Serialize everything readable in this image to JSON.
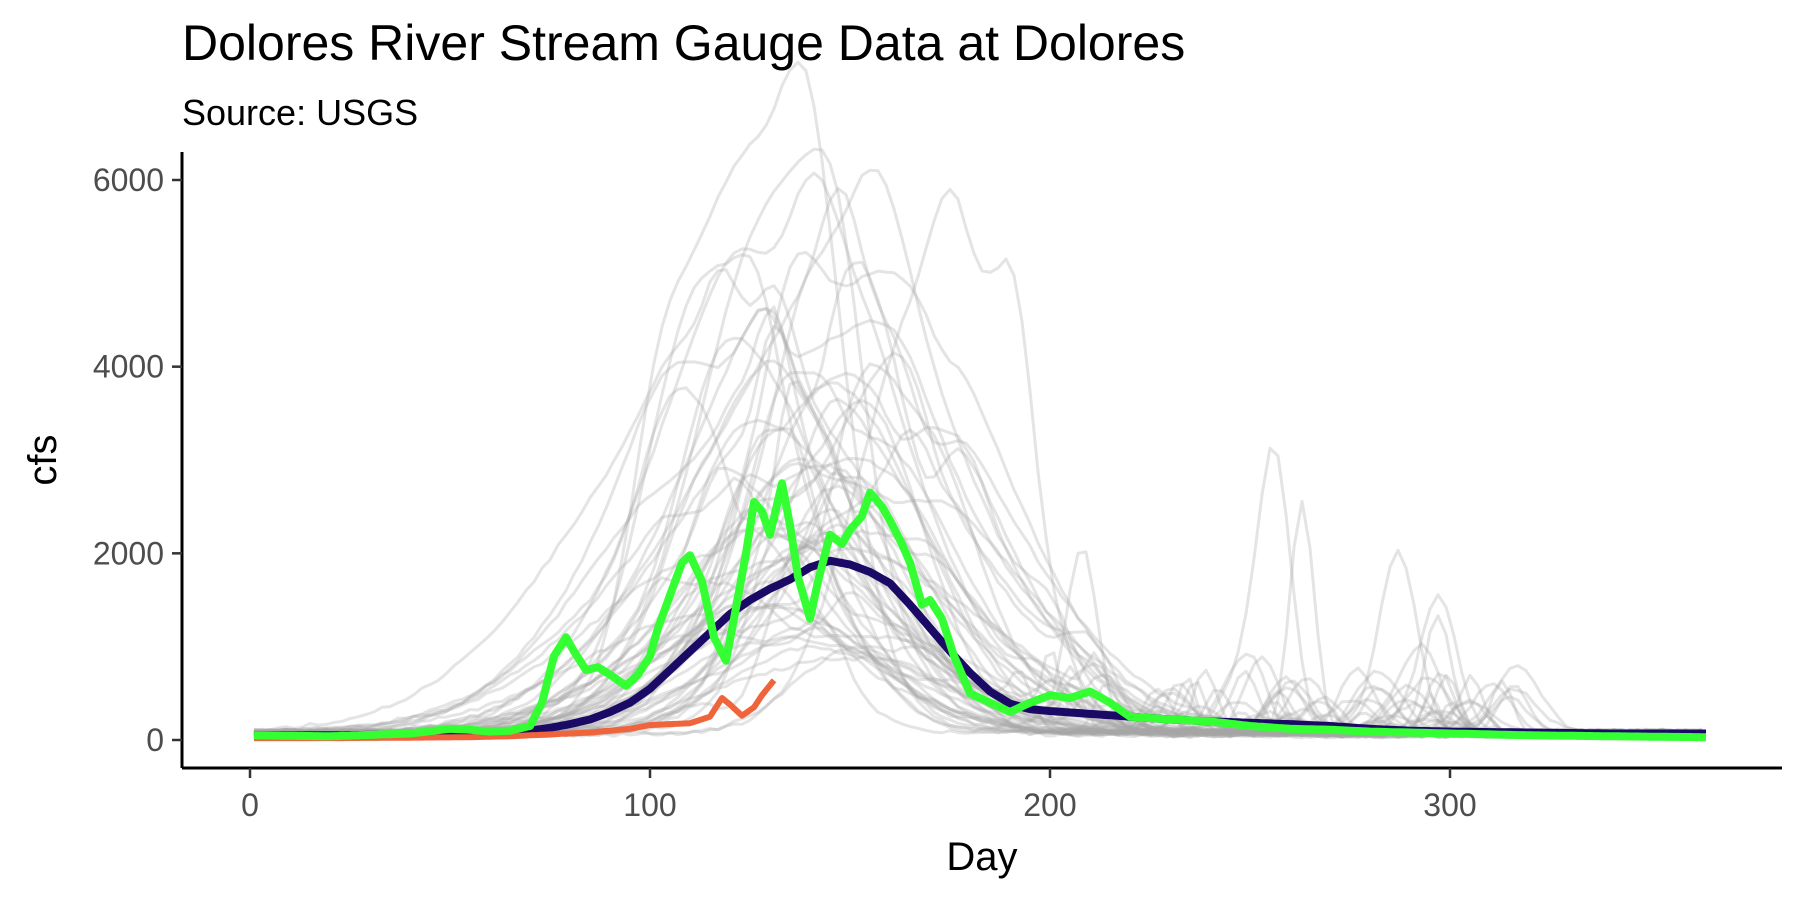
{
  "chart_data": {
    "type": "line",
    "title": "Dolores River Stream Gauge Data at Dolores",
    "subtitle": "Source: USGS",
    "xlabel": "Day",
    "ylabel": "cfs",
    "xlim": [
      -17,
      383
    ],
    "ylim": [
      -300,
      6300
    ],
    "x_ticks": [
      0,
      100,
      200,
      300
    ],
    "y_ticks": [
      0,
      2000,
      4000,
      6000
    ],
    "grid": false,
    "legend": "none",
    "colors": {
      "historical_years": "#a6a6a6",
      "mean": "#1a0a66",
      "current_year": "#f0643c",
      "highlight_year": "#33ff33"
    },
    "background_series": {
      "count": 60,
      "color": "#a6a6a6",
      "peak_day": [
        120,
        160
      ],
      "peak_cfs": [
        900,
        6050
      ],
      "notable_peaks": [
        {
          "x": 124,
          "y": 6050
        },
        {
          "x": 133,
          "y": 5800
        },
        {
          "x": 145,
          "y": 5380
        },
        {
          "x": 157,
          "y": 5020
        },
        {
          "x": 170,
          "y": 4750
        },
        {
          "x": 208,
          "y": 2180
        },
        {
          "x": 256,
          "y": 3270
        },
        {
          "x": 263,
          "y": 2730
        },
        {
          "x": 287,
          "y": 2200
        },
        {
          "x": 297,
          "y": 1720
        }
      ]
    },
    "series": [
      {
        "x": [
          1,
          20,
          40,
          55,
          65,
          70,
          75,
          80,
          85,
          90,
          95,
          100,
          105,
          110,
          115,
          120,
          125,
          130,
          135,
          140,
          145,
          150,
          155,
          160,
          165,
          170,
          175,
          180,
          185,
          190,
          195,
          200,
          210,
          220,
          230,
          240,
          250,
          260,
          270,
          280,
          290,
          300,
          320,
          340,
          364
        ],
        "y": [
          50,
          50,
          60,
          70,
          85,
          100,
          130,
          170,
          220,
          300,
          400,
          550,
          750,
          950,
          1150,
          1350,
          1500,
          1620,
          1720,
          1850,
          1920,
          1880,
          1800,
          1680,
          1450,
          1200,
          950,
          720,
          520,
          390,
          330,
          310,
          280,
          250,
          220,
          200,
          185,
          170,
          150,
          120,
          100,
          90,
          80,
          70,
          70
        ],
        "color": "#1a0a66",
        "width": 8
      },
      {
        "x": [
          1,
          20,
          40,
          55,
          65,
          70,
          75,
          80,
          85,
          90,
          95,
          100,
          105,
          110,
          115,
          118,
          120,
          123,
          126,
          128,
          131
        ],
        "y": [
          20,
          20,
          25,
          30,
          40,
          50,
          60,
          70,
          80,
          100,
          120,
          160,
          170,
          180,
          250,
          450,
          380,
          260,
          350,
          480,
          640
        ],
        "color": "#f0643c",
        "width": 6
      },
      {
        "x": [
          1,
          20,
          40,
          50,
          55,
          60,
          65,
          70,
          73,
          76,
          79,
          81,
          84,
          87,
          90,
          94,
          97,
          100,
          102,
          105,
          108,
          110,
          113,
          116,
          119,
          121,
          124,
          126,
          128,
          130,
          133,
          135,
          137,
          140,
          142,
          145,
          148,
          150,
          153,
          155,
          158,
          160,
          163,
          165,
          168,
          170,
          173,
          176,
          180,
          185,
          190,
          195,
          200,
          205,
          210,
          215,
          220,
          230,
          240,
          250,
          260,
          270,
          280,
          300,
          320,
          340,
          364
        ],
        "y": [
          50,
          40,
          70,
          120,
          110,
          90,
          100,
          150,
          400,
          900,
          1100,
          950,
          750,
          780,
          700,
          580,
          700,
          900,
          1200,
          1550,
          1900,
          1980,
          1700,
          1100,
          850,
          1300,
          2000,
          2550,
          2450,
          2200,
          2750,
          2300,
          1750,
          1300,
          1700,
          2200,
          2100,
          2250,
          2400,
          2650,
          2500,
          2350,
          2100,
          1900,
          1450,
          1500,
          1300,
          900,
          500,
          400,
          300,
          400,
          480,
          450,
          520,
          400,
          250,
          220,
          200,
          150,
          120,
          110,
          90,
          70,
          50,
          40,
          30
        ],
        "color": "#33ff33",
        "width": 8
      }
    ]
  }
}
